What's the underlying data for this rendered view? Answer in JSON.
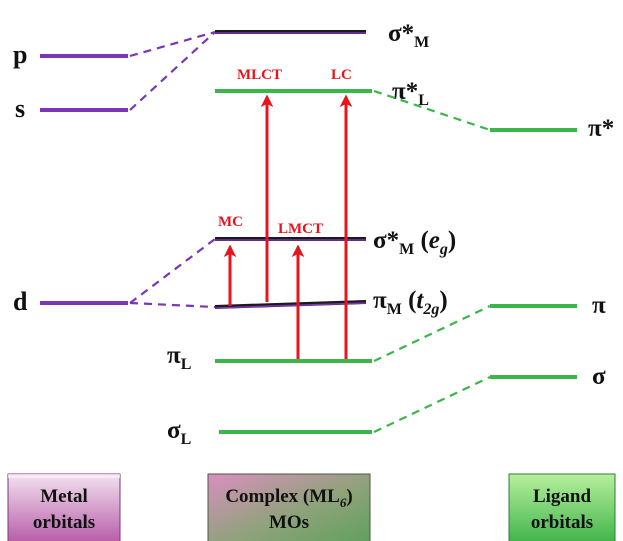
{
  "metal_orbitals": {
    "p": "p",
    "s": "s",
    "d": "d"
  },
  "complex_levels": {
    "sigma_star_M": {
      "base": "σ*",
      "sub": "M"
    },
    "pi_star_L": {
      "base": "π*",
      "sub": "L"
    },
    "sigma_star_M_eg": {
      "base": "σ*",
      "sub": "M",
      "paren": "e",
      "paren_sub": "g"
    },
    "pi_M_t2g": {
      "base": "π",
      "sub": "M",
      "paren": "t",
      "paren_sub": "2g"
    },
    "pi_L": {
      "base": "π",
      "sub": "L"
    },
    "sigma_L": {
      "base": "σ",
      "sub": "L"
    }
  },
  "ligand_orbitals": {
    "pi_star": "π*",
    "pi": "π",
    "sigma": "σ"
  },
  "transitions": {
    "mc": "MC",
    "mlct": "MLCT",
    "lmct": "LMCT",
    "lc": "LC"
  },
  "boxes": {
    "metal": {
      "line1": "Metal",
      "line2": "orbitals"
    },
    "complex": {
      "line1_prefix": "Complex (ML",
      "line1_sub": "6",
      "line1_suffix": ")",
      "line2": "MOs"
    },
    "ligand": {
      "line1": "Ligand",
      "line2": "orbitals"
    }
  },
  "colors": {
    "metal": "#7b35b5",
    "ligand": "#3cb54a",
    "transition": "#e8141b",
    "mixed_level": "#1a1a1a"
  }
}
